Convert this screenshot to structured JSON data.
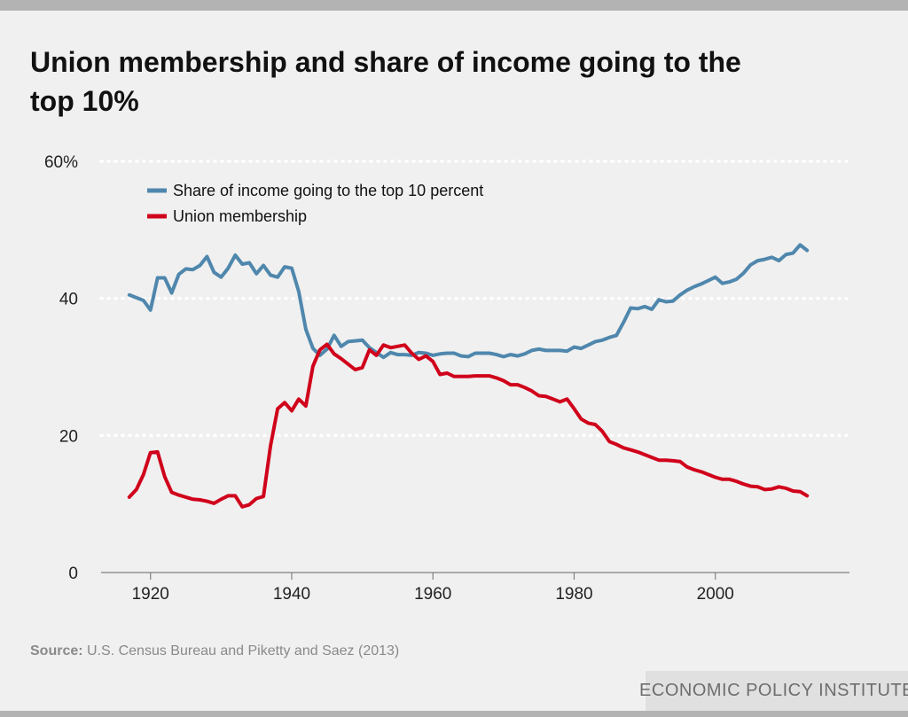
{
  "title": "Union membership and share of income going to the top 10%",
  "source": {
    "label": "Source:",
    "text": "U.S. Census Bureau and Piketty and Saez (2013)"
  },
  "brand": "ECONOMIC POLICY INSTITUTE",
  "colors": {
    "background": "#f0f0f0",
    "income_share": "#4f87ad",
    "union": "#d0021b",
    "gridline": "#ffffff",
    "axis": "#808080"
  },
  "chart_data": {
    "type": "line",
    "title": "Union membership and share of income going to the top 10%",
    "xlabel": "",
    "ylabel": "",
    "xlim": [
      1913,
      2019
    ],
    "ylim": [
      0,
      60
    ],
    "x_ticks": [
      1920,
      1940,
      1960,
      1980,
      2000
    ],
    "x_tick_labels": [
      "1920",
      "1940",
      "1960",
      "1980",
      "2000"
    ],
    "y_ticks": [
      0,
      20,
      40,
      60
    ],
    "y_tick_labels": [
      "0",
      "20",
      "40",
      "60%"
    ],
    "grid": "horizontal dotted",
    "legend": "top-left",
    "series": [
      {
        "name": "Share of income going to the top 10 percent",
        "color": "#4f87ad",
        "points": [
          [
            1917,
            40.5
          ],
          [
            1918,
            40.1
          ],
          [
            1919,
            39.7
          ],
          [
            1920,
            38.3
          ],
          [
            1921,
            43.0
          ],
          [
            1922,
            43.0
          ],
          [
            1923,
            40.8
          ],
          [
            1924,
            43.5
          ],
          [
            1925,
            44.3
          ],
          [
            1926,
            44.2
          ],
          [
            1927,
            44.8
          ],
          [
            1928,
            46.1
          ],
          [
            1929,
            43.8
          ],
          [
            1930,
            43.1
          ],
          [
            1931,
            44.4
          ],
          [
            1932,
            46.3
          ],
          [
            1933,
            45.0
          ],
          [
            1934,
            45.2
          ],
          [
            1935,
            43.6
          ],
          [
            1936,
            44.8
          ],
          [
            1937,
            43.4
          ],
          [
            1938,
            43.1
          ],
          [
            1939,
            44.6
          ],
          [
            1940,
            44.4
          ],
          [
            1941,
            41.0
          ],
          [
            1942,
            35.5
          ],
          [
            1943,
            32.7
          ],
          [
            1944,
            31.7
          ],
          [
            1945,
            32.6
          ],
          [
            1946,
            34.6
          ],
          [
            1947,
            33.0
          ],
          [
            1948,
            33.7
          ],
          [
            1949,
            33.8
          ],
          [
            1950,
            33.9
          ],
          [
            1951,
            32.8
          ],
          [
            1952,
            32.1
          ],
          [
            1953,
            31.4
          ],
          [
            1954,
            32.1
          ],
          [
            1955,
            31.8
          ],
          [
            1956,
            31.8
          ],
          [
            1957,
            31.7
          ],
          [
            1958,
            32.1
          ],
          [
            1959,
            32.0
          ],
          [
            1960,
            31.7
          ],
          [
            1961,
            31.9
          ],
          [
            1962,
            32.0
          ],
          [
            1963,
            32.0
          ],
          [
            1964,
            31.6
          ],
          [
            1965,
            31.5
          ],
          [
            1966,
            32.0
          ],
          [
            1967,
            32.0
          ],
          [
            1968,
            32.0
          ],
          [
            1969,
            31.8
          ],
          [
            1970,
            31.5
          ],
          [
            1971,
            31.8
          ],
          [
            1972,
            31.6
          ],
          [
            1973,
            31.9
          ],
          [
            1974,
            32.4
          ],
          [
            1975,
            32.6
          ],
          [
            1976,
            32.4
          ],
          [
            1977,
            32.4
          ],
          [
            1978,
            32.4
          ],
          [
            1979,
            32.3
          ],
          [
            1980,
            32.9
          ],
          [
            1981,
            32.7
          ],
          [
            1982,
            33.2
          ],
          [
            1983,
            33.7
          ],
          [
            1984,
            33.9
          ],
          [
            1985,
            34.3
          ],
          [
            1986,
            34.6
          ],
          [
            1987,
            36.5
          ],
          [
            1988,
            38.6
          ],
          [
            1989,
            38.5
          ],
          [
            1990,
            38.8
          ],
          [
            1991,
            38.4
          ],
          [
            1992,
            39.8
          ],
          [
            1993,
            39.5
          ],
          [
            1994,
            39.6
          ],
          [
            1995,
            40.5
          ],
          [
            1996,
            41.2
          ],
          [
            1997,
            41.7
          ],
          [
            1998,
            42.1
          ],
          [
            1999,
            42.6
          ],
          [
            2000,
            43.1
          ],
          [
            2001,
            42.2
          ],
          [
            2002,
            42.4
          ],
          [
            2003,
            42.8
          ],
          [
            2004,
            43.7
          ],
          [
            2005,
            44.9
          ],
          [
            2006,
            45.5
          ],
          [
            2007,
            45.7
          ],
          [
            2008,
            46.0
          ],
          [
            2009,
            45.5
          ],
          [
            2010,
            46.4
          ],
          [
            2011,
            46.6
          ],
          [
            2012,
            47.8
          ],
          [
            2013,
            47.0
          ]
        ]
      },
      {
        "name": "Union membership",
        "color": "#d0021b",
        "points": [
          [
            1917,
            11.0
          ],
          [
            1918,
            12.1
          ],
          [
            1919,
            14.3
          ],
          [
            1920,
            17.5
          ],
          [
            1921,
            17.6
          ],
          [
            1922,
            14.0
          ],
          [
            1923,
            11.7
          ],
          [
            1924,
            11.3
          ],
          [
            1925,
            11.0
          ],
          [
            1926,
            10.7
          ],
          [
            1927,
            10.6
          ],
          [
            1928,
            10.4
          ],
          [
            1929,
            10.1
          ],
          [
            1930,
            10.7
          ],
          [
            1931,
            11.2
          ],
          [
            1932,
            11.2
          ],
          [
            1933,
            9.6
          ],
          [
            1934,
            9.9
          ],
          [
            1935,
            10.8
          ],
          [
            1936,
            11.1
          ],
          [
            1937,
            18.5
          ],
          [
            1938,
            23.9
          ],
          [
            1939,
            24.8
          ],
          [
            1940,
            23.6
          ],
          [
            1941,
            25.3
          ],
          [
            1942,
            24.3
          ],
          [
            1943,
            30.1
          ],
          [
            1944,
            32.5
          ],
          [
            1945,
            33.3
          ],
          [
            1946,
            31.9
          ],
          [
            1947,
            31.2
          ],
          [
            1948,
            30.4
          ],
          [
            1949,
            29.6
          ],
          [
            1950,
            29.9
          ],
          [
            1951,
            32.5
          ],
          [
            1952,
            31.7
          ],
          [
            1953,
            33.2
          ],
          [
            1954,
            32.8
          ],
          [
            1955,
            33.0
          ],
          [
            1956,
            33.2
          ],
          [
            1957,
            32.0
          ],
          [
            1958,
            31.1
          ],
          [
            1959,
            31.6
          ],
          [
            1960,
            30.8
          ],
          [
            1961,
            28.9
          ],
          [
            1962,
            29.1
          ],
          [
            1963,
            28.6
          ],
          [
            1964,
            28.6
          ],
          [
            1965,
            28.6
          ],
          [
            1966,
            28.7
          ],
          [
            1967,
            28.7
          ],
          [
            1968,
            28.7
          ],
          [
            1969,
            28.4
          ],
          [
            1970,
            28.0
          ],
          [
            1971,
            27.4
          ],
          [
            1972,
            27.4
          ],
          [
            1973,
            27.0
          ],
          [
            1974,
            26.5
          ],
          [
            1975,
            25.8
          ],
          [
            1976,
            25.7
          ],
          [
            1977,
            25.3
          ],
          [
            1978,
            24.9
          ],
          [
            1979,
            25.3
          ],
          [
            1980,
            23.9
          ],
          [
            1981,
            22.4
          ],
          [
            1982,
            21.8
          ],
          [
            1983,
            21.6
          ],
          [
            1984,
            20.6
          ],
          [
            1985,
            19.1
          ],
          [
            1986,
            18.7
          ],
          [
            1987,
            18.2
          ],
          [
            1988,
            17.9
          ],
          [
            1989,
            17.6
          ],
          [
            1990,
            17.2
          ],
          [
            1991,
            16.8
          ],
          [
            1992,
            16.4
          ],
          [
            1993,
            16.4
          ],
          [
            1994,
            16.3
          ],
          [
            1995,
            16.2
          ],
          [
            1996,
            15.4
          ],
          [
            1997,
            15.0
          ],
          [
            1998,
            14.7
          ],
          [
            1999,
            14.3
          ],
          [
            2000,
            13.9
          ],
          [
            2001,
            13.6
          ],
          [
            2002,
            13.6
          ],
          [
            2003,
            13.3
          ],
          [
            2004,
            12.9
          ],
          [
            2005,
            12.6
          ],
          [
            2006,
            12.5
          ],
          [
            2007,
            12.1
          ],
          [
            2008,
            12.2
          ],
          [
            2009,
            12.5
          ],
          [
            2010,
            12.3
          ],
          [
            2011,
            11.9
          ],
          [
            2012,
            11.8
          ],
          [
            2013,
            11.2
          ]
        ]
      }
    ]
  }
}
